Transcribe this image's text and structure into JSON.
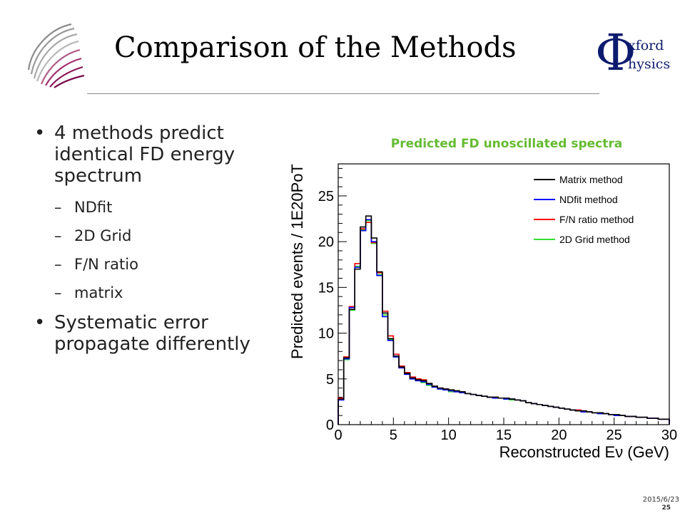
{
  "slide": {
    "title": "Comparison of the Methods",
    "logo_right_symbol": "Φ",
    "logo_right_line1": "xford",
    "logo_right_line2": "hysics",
    "bullets": [
      {
        "level": 1,
        "text": "4 methods predict identical FD energy spectrum"
      },
      {
        "level": 2,
        "text": "NDfit"
      },
      {
        "level": 2,
        "text": "2D Grid"
      },
      {
        "level": 2,
        "text": "F/N ratio"
      },
      {
        "level": 2,
        "text": "matrix"
      },
      {
        "level": 1,
        "text": "Systematic error propagate differently"
      }
    ],
    "footer_date": "2015/6/23",
    "page_number": "25",
    "bullet_char": "•",
    "dash_char": "–"
  },
  "chart_data": {
    "type": "line",
    "title": "Predicted FD unoscillated spectra",
    "xlabel": "Reconstructed Eν (GeV)",
    "ylabel": "Predicted events / 1E20PoT",
    "xlim": [
      0,
      30
    ],
    "ylim": [
      0,
      28.5
    ],
    "xticks": [
      0,
      5,
      10,
      15,
      20,
      25,
      30
    ],
    "yticks": [
      0,
      5,
      10,
      15,
      20,
      25
    ],
    "bin_edges": [
      0,
      0.5,
      1,
      1.5,
      2,
      2.5,
      3,
      3.5,
      4,
      4.5,
      5,
      5.5,
      6,
      6.5,
      7,
      7.5,
      8,
      8.5,
      9,
      9.5,
      10,
      10.5,
      11,
      11.5,
      12,
      12.5,
      13,
      13.5,
      14,
      14.5,
      15,
      15.5,
      16,
      16.5,
      17,
      17.5,
      18,
      18.5,
      19,
      19.5,
      20,
      20.5,
      21,
      21.5,
      22,
      22.5,
      23,
      23.5,
      24,
      24.5,
      25,
      25.5,
      26,
      26.5,
      27,
      27.5,
      28,
      28.5,
      29,
      29.5,
      30
    ],
    "legend_position": "top-right",
    "series": [
      {
        "name": "Matrix method",
        "color": "#000000",
        "values": [
          2.8,
          7.3,
          12.6,
          17.0,
          21.6,
          22.8,
          20.4,
          16.7,
          12.2,
          9.4,
          7.5,
          6.3,
          5.6,
          5.1,
          4.9,
          4.8,
          4.5,
          4.2,
          4.0,
          3.9,
          3.8,
          3.7,
          3.6,
          3.4,
          3.3,
          3.2,
          3.1,
          3.0,
          3.0,
          2.9,
          2.9,
          2.8,
          2.7,
          2.6,
          2.4,
          2.3,
          2.2,
          2.1,
          2.0,
          1.9,
          1.8,
          1.7,
          1.6,
          1.5,
          1.5,
          1.4,
          1.3,
          1.3,
          1.2,
          1.1,
          1.1,
          1.0,
          0.9,
          0.9,
          0.8,
          0.8,
          0.7,
          0.7,
          0.6,
          0.6
        ]
      },
      {
        "name": "NDfit method",
        "color": "#0000ff",
        "values": [
          2.7,
          7.2,
          12.8,
          17.2,
          21.2,
          22.4,
          20.0,
          16.3,
          11.8,
          9.2,
          7.4,
          6.2,
          5.5,
          5.0,
          4.8,
          4.7,
          4.4,
          4.1,
          3.9,
          3.8,
          3.7,
          3.6,
          3.5,
          3.4,
          3.3,
          3.2,
          3.1,
          3.0,
          2.9,
          2.9,
          2.8,
          2.8,
          2.7,
          2.6,
          2.4,
          2.3,
          2.2,
          2.1,
          2.0,
          1.9,
          1.8,
          1.7,
          1.6,
          1.5,
          1.4,
          1.4,
          1.3,
          1.2,
          1.2,
          1.1,
          1.0,
          1.0,
          0.9,
          0.9,
          0.8,
          0.8,
          0.7,
          0.7,
          0.6,
          0.6
        ]
      },
      {
        "name": "F/N ratio method",
        "color": "#ff0000",
        "values": [
          2.9,
          7.4,
          12.9,
          17.6,
          21.4,
          22.1,
          19.9,
          16.6,
          12.4,
          9.7,
          7.7,
          6.4,
          5.7,
          5.2,
          5.0,
          4.9,
          4.5,
          4.2,
          4.0,
          3.9,
          3.7,
          3.6,
          3.5,
          3.4,
          3.3,
          3.2,
          3.1,
          3.0,
          3.0,
          2.9,
          2.9,
          2.8,
          2.7,
          2.6,
          2.4,
          2.3,
          2.2,
          2.1,
          2.0,
          1.9,
          1.8,
          1.7,
          1.6,
          1.6,
          1.5,
          1.4,
          1.3,
          1.3,
          1.2,
          1.1,
          1.0,
          1.0,
          0.9,
          0.9,
          0.8,
          0.8,
          0.7,
          0.7,
          0.6,
          0.6
        ]
      },
      {
        "name": "2D Grid method",
        "color": "#33dd33",
        "values": [
          2.8,
          7.1,
          12.5,
          17.3,
          21.3,
          22.3,
          19.8,
          16.4,
          12.0,
          9.3,
          7.4,
          6.3,
          5.5,
          5.0,
          4.8,
          4.6,
          4.3,
          4.1,
          3.9,
          3.8,
          3.6,
          3.6,
          3.5,
          3.4,
          3.3,
          3.2,
          3.1,
          3.0,
          2.9,
          2.9,
          2.8,
          2.7,
          2.7,
          2.6,
          2.4,
          2.3,
          2.2,
          2.1,
          2.0,
          1.9,
          1.8,
          1.7,
          1.6,
          1.5,
          1.4,
          1.4,
          1.3,
          1.2,
          1.2,
          1.1,
          1.0,
          1.0,
          0.9,
          0.9,
          0.8,
          0.8,
          0.7,
          0.7,
          0.6,
          0.6
        ]
      }
    ],
    "grid": false
  }
}
